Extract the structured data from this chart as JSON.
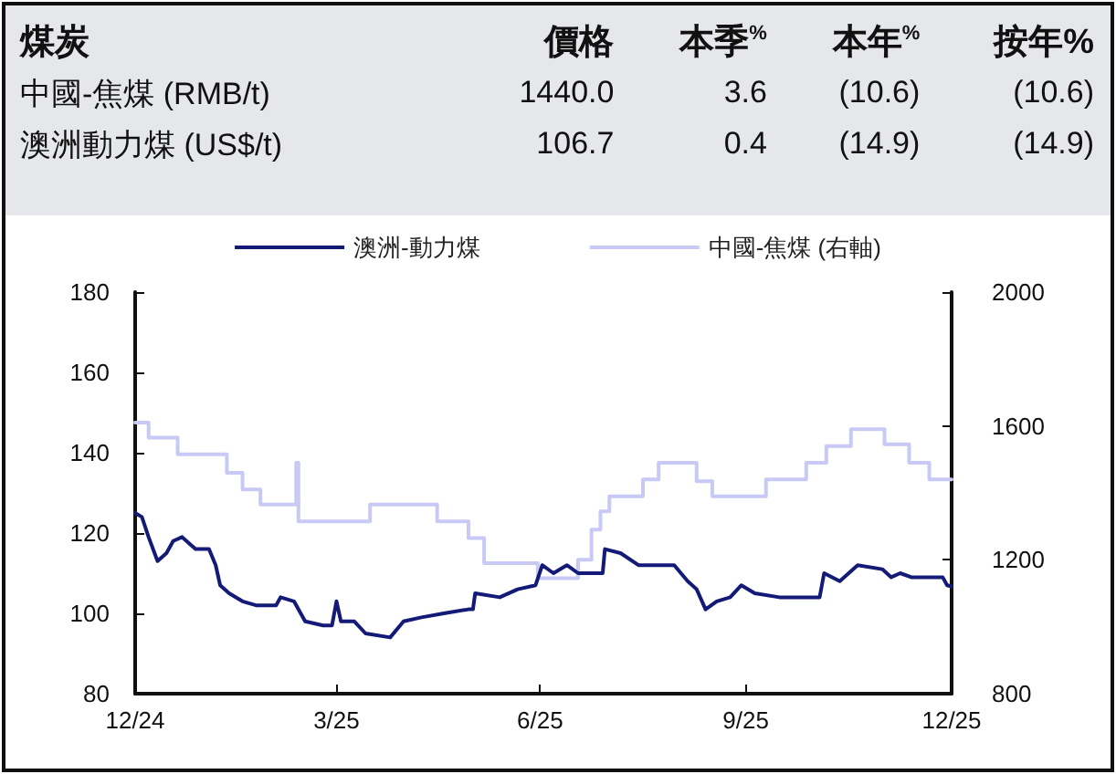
{
  "chart_data": [
    {
      "type": "other",
      "title": "煤炭",
      "annotations": [
        "價格",
        "本季$^{%}$",
        "本年$^{%}$",
        "按年%",
        "中國-焦煤 (RMB/t)",
        "1440.0",
        "3.6",
        "(10.6)",
        "(10.6)",
        "澳洲動力煤 (US$/t)",
        "106.7",
        "0.4",
        "(14.9)",
        "(14.9)"
      ]
    },
    {
      "type": "line",
      "legend": "top",
      "marker": "none",
      "line_style": "solid",
      "xlim": [
        "2024-12-31",
        "2025-12-31"
      ],
      "xticks": [
        {
          "value": "2024-12-31",
          "label": "12/24"
        },
        {
          "value": "2025-03-31",
          "label": "3/25"
        },
        {
          "value": "2025-06-30",
          "label": "6/25"
        },
        {
          "value": "2025-09-30",
          "label": "9/25"
        },
        {
          "value": "2025-12-31",
          "label": "12/25"
        }
      ],
      "ylim": [
        80,
        180
      ],
      "yticks": [
        80,
        100,
        120,
        140,
        160,
        180
      ],
      "y2lim": [
        800,
        2000
      ],
      "y2ticks": [
        800,
        1200,
        1600,
        2000
      ],
      "series": [
        {
          "name": "澳洲-動力煤",
          "color": "#141a78",
          "x": [
            "2024-12-31",
            "2025-01-03",
            "2025-01-06",
            "2025-01-10",
            "2025-01-14",
            "2025-01-17",
            "2025-01-21",
            "2025-01-25",
            "2025-01-27",
            "2025-02-02",
            "2025-02-05",
            "2025-02-07",
            "2025-02-11",
            "2025-02-17",
            "2025-02-23",
            "2025-03-04",
            "2025-03-06",
            "2025-03-12",
            "2025-03-17",
            "2025-03-25",
            "2025-03-29",
            "2025-03-31",
            "2025-04-02",
            "2025-04-08",
            "2025-04-13",
            "2025-04-24",
            "2025-04-30",
            "2025-05-08",
            "2025-05-18",
            "2025-05-29",
            "2025-05-31",
            "2025-06-01",
            "2025-06-12",
            "2025-06-20",
            "2025-06-28",
            "2025-07-01",
            "2025-07-06",
            "2025-07-12",
            "2025-07-17",
            "2025-07-28",
            "2025-07-29",
            "2025-08-05",
            "2025-08-13",
            "2025-08-21",
            "2025-08-29",
            "2025-09-04",
            "2025-09-08",
            "2025-09-12",
            "2025-09-17",
            "2025-09-23",
            "2025-09-28",
            "2025-10-04",
            "2025-10-15",
            "2025-11-02",
            "2025-11-04",
            "2025-11-11",
            "2025-11-19",
            "2025-11-30",
            "2025-12-04",
            "2025-12-08",
            "2025-12-13",
            "2025-12-27",
            "2025-12-29",
            "2025-12-31"
          ],
          "values": [
            125,
            124,
            119,
            113,
            115,
            118,
            119,
            117,
            116,
            116,
            112,
            107,
            105,
            103,
            102,
            102,
            104,
            103,
            98,
            97,
            97,
            103,
            98,
            98,
            95,
            94,
            98,
            99,
            100,
            101,
            101,
            105,
            104,
            106,
            107,
            112,
            110,
            112,
            110,
            110,
            116,
            115,
            112,
            112,
            112,
            108,
            106,
            101,
            103,
            104,
            107,
            105,
            104,
            104,
            110,
            108,
            112,
            111,
            109,
            110,
            109,
            109,
            107,
            106.7
          ]
        },
        {
          "name": "中國-焦煤 (右軸)",
          "color": "#c8c9f4",
          "type": "step",
          "axis": "y2",
          "x": [
            "2024-12-31",
            "2025-01-06",
            "2025-01-19",
            "2025-02-10",
            "2025-02-17",
            "2025-02-25",
            "2025-03-13",
            "2025-03-14",
            "2025-04-15",
            "2025-05-15",
            "2025-05-29",
            "2025-06-05",
            "2025-06-29",
            "2025-07-17",
            "2025-07-23",
            "2025-07-27",
            "2025-07-31",
            "2025-08-15",
            "2025-08-22",
            "2025-09-08",
            "2025-09-15",
            "2025-10-09",
            "2025-10-27",
            "2025-11-05",
            "2025-11-16",
            "2025-12-01",
            "2025-12-12",
            "2025-12-21",
            "2025-12-31"
          ],
          "values": [
            1610,
            1565,
            1515,
            1460,
            1410,
            1365,
            1490,
            1315,
            1365,
            1315,
            1265,
            1190,
            1145,
            1200,
            1290,
            1345,
            1390,
            1440,
            1490,
            1435,
            1390,
            1440,
            1490,
            1540,
            1590,
            1545,
            1490,
            1440,
            1440
          ]
        }
      ]
    }
  ]
}
